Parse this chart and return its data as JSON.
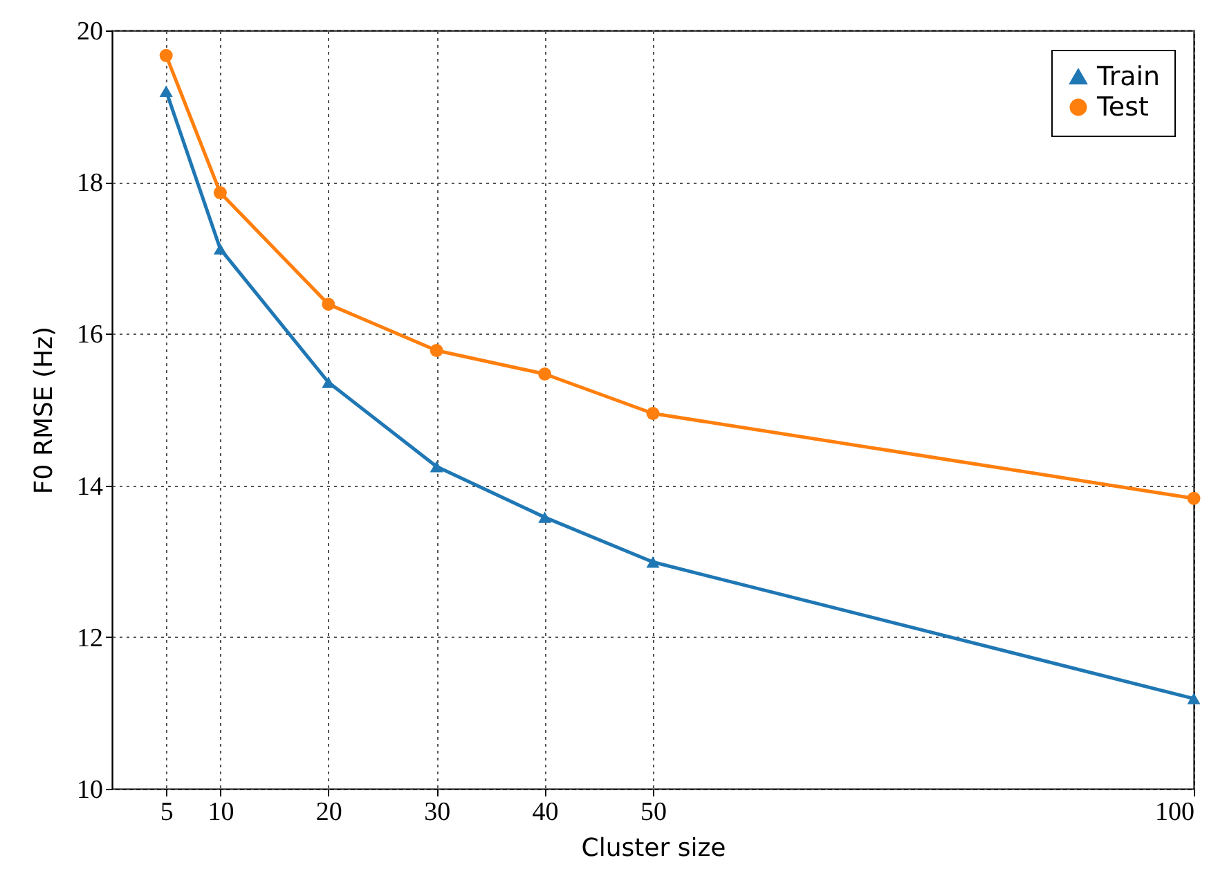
{
  "chart_data": {
    "type": "line",
    "xlabel": "Cluster size",
    "ylabel": "F0 RMSE (Hz)",
    "x": [
      5,
      10,
      20,
      30,
      40,
      50,
      100
    ],
    "series": [
      {
        "name": "Train",
        "color": "#1f77b4",
        "marker": "triangle",
        "values": [
          19.2,
          17.12,
          15.36,
          14.25,
          13.58,
          12.99,
          11.19
        ]
      },
      {
        "name": "Test",
        "color": "#ff7f0e",
        "marker": "circle",
        "values": [
          19.67,
          17.86,
          16.39,
          15.78,
          15.47,
          14.95,
          13.83
        ]
      }
    ],
    "xlim": [
      0,
      100
    ],
    "xticks": [
      5,
      10,
      20,
      30,
      40,
      50,
      100
    ],
    "ylim": [
      10,
      20
    ],
    "yticks": [
      10,
      12,
      14,
      16,
      18,
      20
    ],
    "grid": true,
    "legend": "top right",
    "line_style": "solid"
  }
}
